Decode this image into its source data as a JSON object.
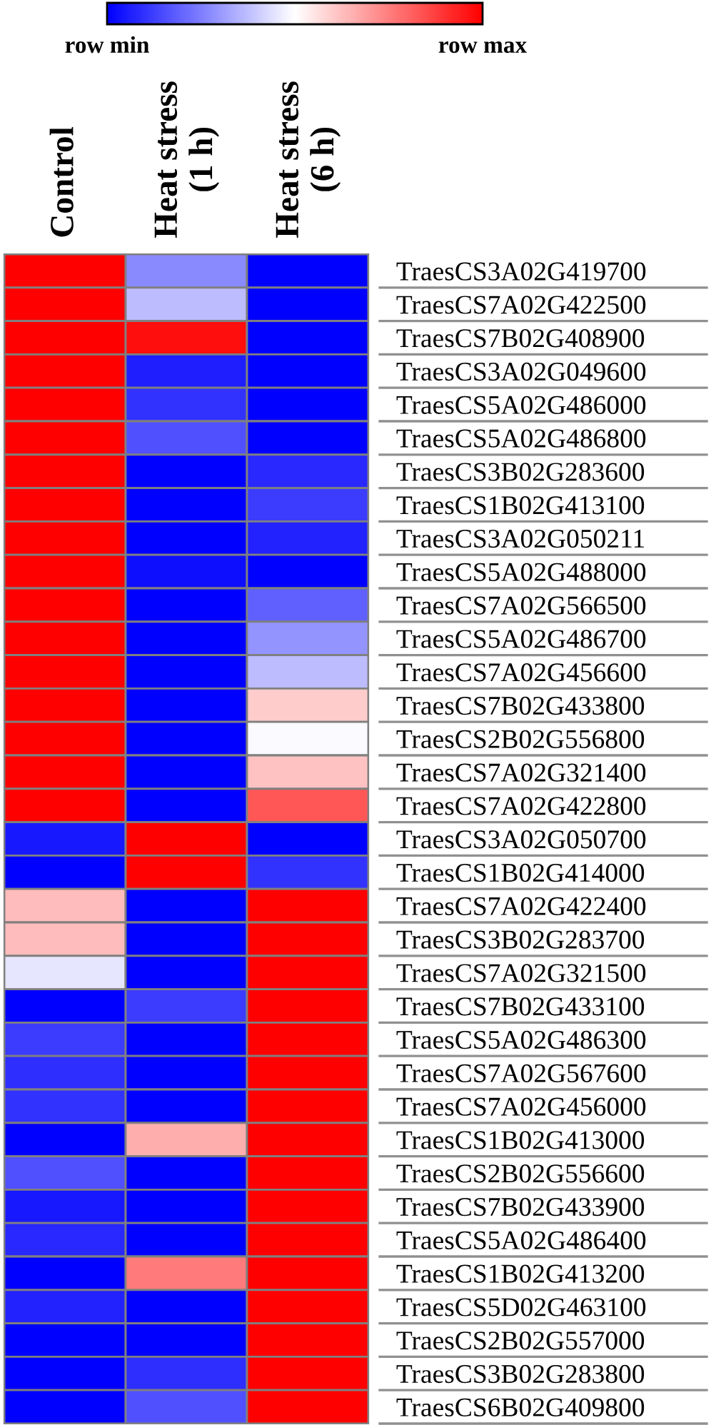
{
  "chart_data": {
    "type": "heatmap",
    "categories": [
      "Control",
      "Heat stress\n(1 h)",
      "Heat stress\n(6 h)"
    ],
    "y_categories": [
      "TraesCS3A02G419700",
      "TraesCS7A02G422500",
      "TraesCS7B02G408900",
      "TraesCS3A02G049600",
      "TraesCS5A02G486000",
      "TraesCS5A02G486800",
      "TraesCS3B02G283600",
      "TraesCS1B02G413100",
      "TraesCS3A02G050211",
      "TraesCS5A02G488000",
      "TraesCS7A02G566500",
      "TraesCS5A02G486700",
      "TraesCS7A02G456600",
      "TraesCS7B02G433800",
      "TraesCS2B02G556800",
      "TraesCS7A02G321400",
      "TraesCS7A02G422800",
      "TraesCS3A02G050700",
      "TraesCS1B02G414000",
      "TraesCS7A02G422400",
      "TraesCS3B02G283700",
      "TraesCS7A02G321500",
      "TraesCS7B02G433100",
      "TraesCS5A02G486300",
      "TraesCS7A02G567600",
      "TraesCS7A02G456000",
      "TraesCS1B02G413000",
      "TraesCS2B02G556600",
      "TraesCS7B02G433900",
      "TraesCS5A02G486400",
      "TraesCS1B02G413200",
      "TraesCS5D02G463100",
      "TraesCS2B02G557000",
      "TraesCS3B02G283800",
      "TraesCS6B02G409800"
    ],
    "cells": [
      [
        1,
        0.27,
        0
      ],
      [
        1,
        0.37,
        0
      ],
      [
        1,
        0.97,
        0
      ],
      [
        1,
        0.06,
        0
      ],
      [
        1,
        0.1,
        0
      ],
      [
        1,
        0.16,
        0
      ],
      [
        1,
        0,
        0.08
      ],
      [
        1,
        0,
        0.12
      ],
      [
        1,
        0,
        0.07
      ],
      [
        1,
        0.03,
        0
      ],
      [
        1,
        0,
        0.19
      ],
      [
        1,
        0,
        0.29
      ],
      [
        1,
        0,
        0.37
      ],
      [
        1,
        0,
        0.6
      ],
      [
        1,
        0,
        0.49
      ],
      [
        1,
        0,
        0.62
      ],
      [
        1,
        0,
        0.83
      ],
      [
        0.05,
        1,
        0
      ],
      [
        0,
        1,
        0.1
      ],
      [
        0.63,
        0,
        1
      ],
      [
        0.63,
        0,
        1
      ],
      [
        0.45,
        0,
        1
      ],
      [
        0,
        0.12,
        1
      ],
      [
        0.12,
        0,
        1
      ],
      [
        0.09,
        0,
        1
      ],
      [
        0.1,
        0,
        1
      ],
      [
        0,
        0.66,
        1
      ],
      [
        0.16,
        0,
        1
      ],
      [
        0.05,
        0,
        1
      ],
      [
        0.08,
        0,
        1
      ],
      [
        0,
        0.76,
        1
      ],
      [
        0.07,
        0,
        1
      ],
      [
        0,
        0,
        1
      ],
      [
        0,
        0.09,
        1
      ],
      [
        0,
        0.16,
        1
      ]
    ],
    "clim": [
      0,
      1
    ],
    "cticks": [
      {
        "value": 0,
        "label": "row min"
      },
      {
        "value": 1,
        "label": "row max"
      }
    ]
  }
}
